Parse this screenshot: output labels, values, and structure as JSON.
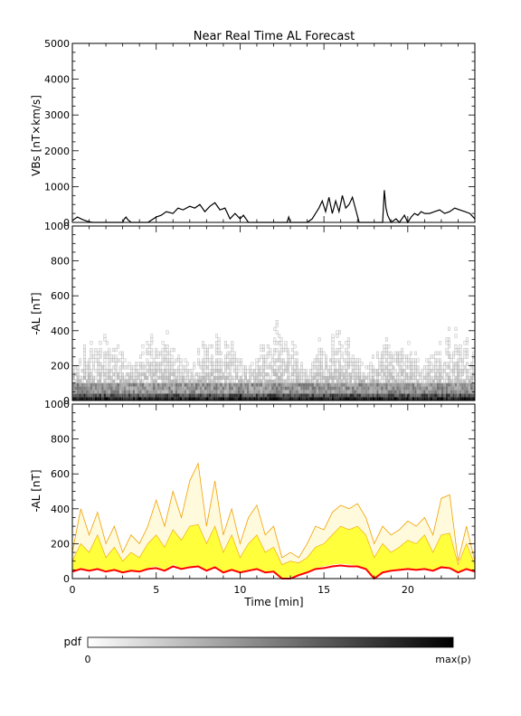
{
  "chart_data": [
    {
      "type": "line",
      "title": "Near Real Time AL Forecast",
      "ylabel": "VBs [nT×km/s]",
      "ylim": [
        0,
        5000
      ],
      "yticks": [
        0,
        1000,
        2000,
        3000,
        4000,
        5000
      ],
      "xlim": [
        0,
        24
      ],
      "color": "#000000",
      "x": [
        0,
        0.3,
        0.6,
        0.9,
        1.2,
        1.5,
        2,
        2.5,
        3,
        3.1,
        3.2,
        3.3,
        3.5,
        4,
        4.5,
        5,
        5.3,
        5.6,
        6,
        6.3,
        6.6,
        7,
        7.3,
        7.6,
        7.9,
        8.2,
        8.5,
        8.8,
        9.1,
        9.4,
        9.7,
        10,
        10.2,
        10.5,
        11,
        12,
        12.8,
        12.9,
        13,
        13.5,
        14,
        14.3,
        14.5,
        14.7,
        14.9,
        15.1,
        15.3,
        15.5,
        15.7,
        15.9,
        16.1,
        16.3,
        16.5,
        16.7,
        16.9,
        17.1,
        17.3,
        17.6,
        18,
        18.3,
        18.5,
        18.6,
        18.7,
        18.8,
        19,
        19.3,
        19.5,
        19.8,
        20,
        20.2,
        20.4,
        20.6,
        20.8,
        21,
        21.3,
        21.6,
        21.9,
        22.2,
        22.5,
        22.8,
        23.1,
        23.4,
        23.7,
        24
      ],
      "y": [
        50,
        150,
        80,
        30,
        0,
        0,
        0,
        0,
        0,
        100,
        150,
        80,
        0,
        0,
        0,
        150,
        200,
        300,
        250,
        400,
        350,
        450,
        400,
        500,
        300,
        450,
        550,
        350,
        400,
        100,
        250,
        100,
        200,
        0,
        0,
        0,
        0,
        150,
        0,
        0,
        0,
        100,
        250,
        400,
        600,
        300,
        700,
        250,
        600,
        300,
        750,
        400,
        500,
        700,
        350,
        0,
        0,
        0,
        0,
        0,
        0,
        900,
        400,
        200,
        0,
        100,
        0,
        200,
        0,
        150,
        250,
        200,
        300,
        250,
        250,
        300,
        350,
        250,
        300,
        400,
        350,
        300,
        250,
        100
      ]
    },
    {
      "type": "heatmap",
      "ylabel": "-AL [nT]",
      "ylim": [
        0,
        1000
      ],
      "yticks": [
        0,
        200,
        400,
        600,
        800,
        1000
      ],
      "xlim": [
        0,
        24
      ],
      "color_scale": [
        "#ffffff",
        "#000000"
      ]
    },
    {
      "type": "area",
      "ylabel": "-AL [nT]",
      "xlabel": "Time [min]",
      "ylim": [
        0,
        1000
      ],
      "yticks": [
        0,
        200,
        400,
        600,
        800,
        1000
      ],
      "xlim": [
        0,
        24
      ],
      "xticks": [
        0,
        5,
        10,
        15,
        20
      ],
      "colors": {
        "outer": "#fffadc",
        "inner": "#ffff3c",
        "envelope": "#f0a000",
        "median": "#ff0000"
      },
      "x": [
        0,
        0.5,
        1,
        1.5,
        2,
        2.5,
        3,
        3.5,
        4,
        4.5,
        5,
        5.5,
        6,
        6.5,
        7,
        7.5,
        8,
        8.5,
        9,
        9.5,
        10,
        10.5,
        11,
        11.5,
        12,
        12.5,
        13,
        13.5,
        14,
        14.5,
        15,
        15.5,
        16,
        16.5,
        17,
        17.5,
        18,
        18.5,
        19,
        19.5,
        20,
        20.5,
        21,
        21.5,
        22,
        22.5,
        23,
        23.5,
        24
      ],
      "upper": [
        150,
        400,
        250,
        380,
        200,
        300,
        150,
        250,
        200,
        300,
        450,
        300,
        500,
        350,
        560,
        660,
        300,
        560,
        250,
        400,
        200,
        350,
        420,
        250,
        300,
        120,
        150,
        120,
        200,
        300,
        280,
        380,
        420,
        400,
        430,
        350,
        200,
        300,
        250,
        280,
        330,
        300,
        350,
        250,
        460,
        480,
        100,
        300,
        100
      ],
      "inner_upper": [
        100,
        200,
        150,
        250,
        120,
        180,
        100,
        150,
        120,
        200,
        250,
        180,
        280,
        220,
        300,
        310,
        200,
        300,
        150,
        250,
        120,
        200,
        250,
        150,
        180,
        80,
        100,
        90,
        120,
        180,
        200,
        250,
        300,
        280,
        300,
        250,
        120,
        200,
        150,
        180,
        220,
        200,
        250,
        150,
        250,
        260,
        80,
        200,
        80
      ],
      "inner_lower": [
        40,
        60,
        50,
        60,
        45,
        50,
        40,
        50,
        40,
        60,
        70,
        50,
        80,
        60,
        70,
        75,
        50,
        70,
        40,
        55,
        40,
        50,
        60,
        40,
        45,
        0,
        10,
        20,
        40,
        60,
        70,
        80,
        85,
        80,
        75,
        60,
        0,
        40,
        50,
        55,
        60,
        55,
        60,
        50,
        70,
        65,
        40,
        60,
        40
      ],
      "median": [
        40,
        55,
        45,
        55,
        40,
        50,
        35,
        45,
        40,
        55,
        60,
        45,
        70,
        55,
        65,
        70,
        45,
        65,
        35,
        50,
        35,
        45,
        55,
        35,
        40,
        0,
        0,
        20,
        35,
        55,
        60,
        70,
        75,
        70,
        70,
        55,
        0,
        35,
        45,
        50,
        55,
        50,
        55,
        45,
        65,
        60,
        35,
        55,
        40
      ]
    }
  ],
  "colorbar": {
    "label": "pdf",
    "min_label": "0",
    "max_label": "max(p)"
  }
}
